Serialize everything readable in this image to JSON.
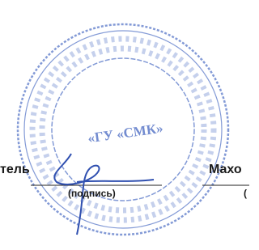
{
  "stamp": {
    "center_text": "«ГУ «СМК»"
  },
  "signature_line": {
    "left_text": "тель",
    "caption": "(подпись)",
    "right_text": "Махо",
    "right_caption": "("
  }
}
